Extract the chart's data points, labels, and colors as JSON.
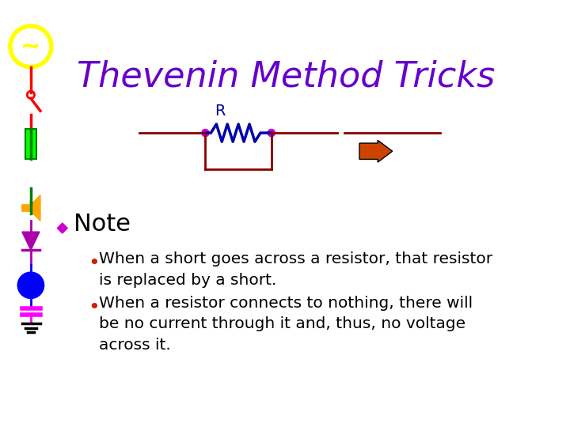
{
  "title": "Thevenin Method Tricks",
  "title_color": "#6600cc",
  "title_fontsize": 32,
  "title_style": "italic",
  "title_font": "Times New Roman",
  "bg_color": "#ffffff",
  "note_text": "Note",
  "note_diamond_color": "#cc00cc",
  "bullet1": "When a short goes across a resistor, that resistor\nis replaced by a short.",
  "bullet2": "When a resistor connects to nothing, there will\nbe no current through it and, thus, no voltage\nacross it.",
  "bullet_color": "#cc2200",
  "text_color": "#000000",
  "circuit_line_color": "#880000",
  "resistor_color": "#0000aa",
  "node_color": "#cc00cc",
  "short_line_color": "#880000",
  "arrow_color": "#cc4400",
  "arrow_fill": "#cc4400",
  "R_label_color": "#000099"
}
